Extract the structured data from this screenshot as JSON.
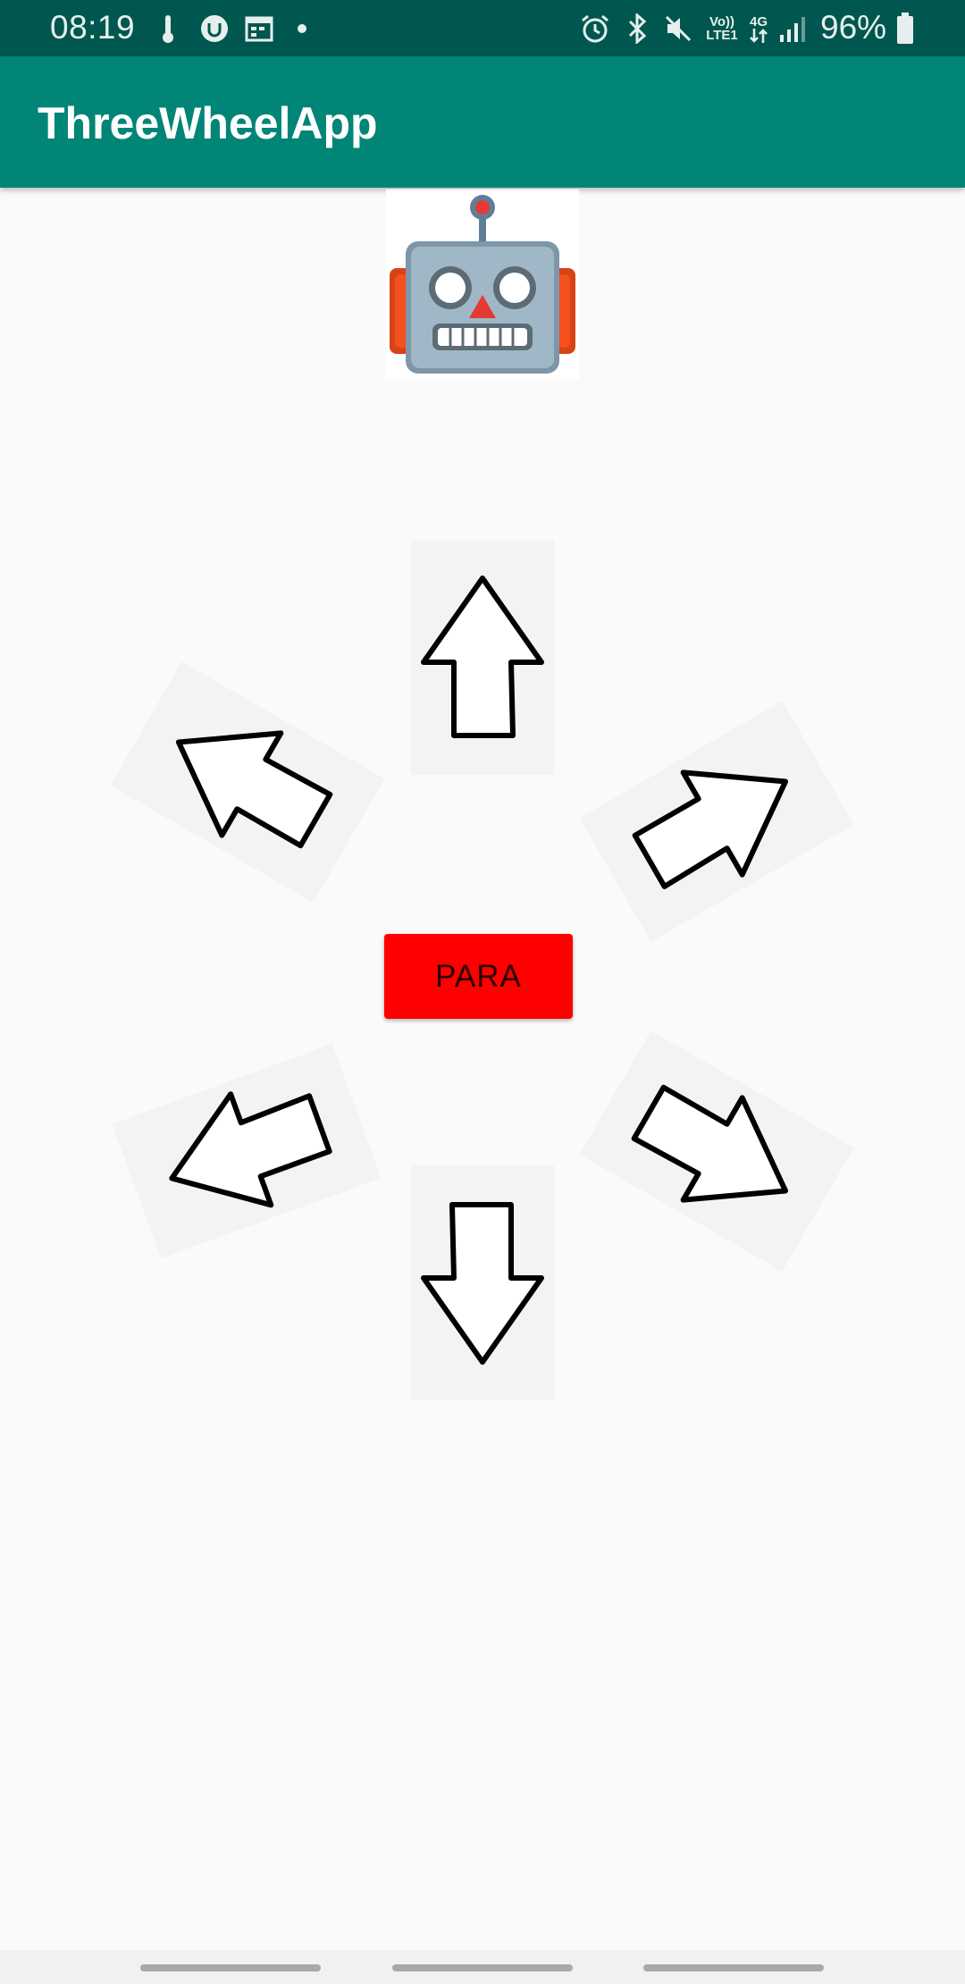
{
  "status_bar": {
    "time": "08:19",
    "battery_percent": "96%",
    "network_top": "Vo))",
    "network_bottom": "LTE1",
    "signal_type": "4G",
    "notification_icons": [
      "thermometer-icon",
      "app-u-icon",
      "calendar-icon",
      "dot-icon"
    ],
    "system_icons": [
      "alarm-icon",
      "bluetooth-icon",
      "mute-icon",
      "volte-icon",
      "4g-icon",
      "signal-icon",
      "battery-icon"
    ]
  },
  "app_bar": {
    "title": "ThreeWheelApp"
  },
  "robot": {
    "icon": "robot-face-icon"
  },
  "controls": {
    "stop_label": "PARA",
    "arrows": [
      "up",
      "up-left",
      "up-right",
      "down-left",
      "down-right",
      "down"
    ]
  },
  "colors": {
    "status_bar": "#00574f",
    "app_bar": "#008577",
    "stop_button": "#ff0000",
    "background": "#fafafa"
  }
}
